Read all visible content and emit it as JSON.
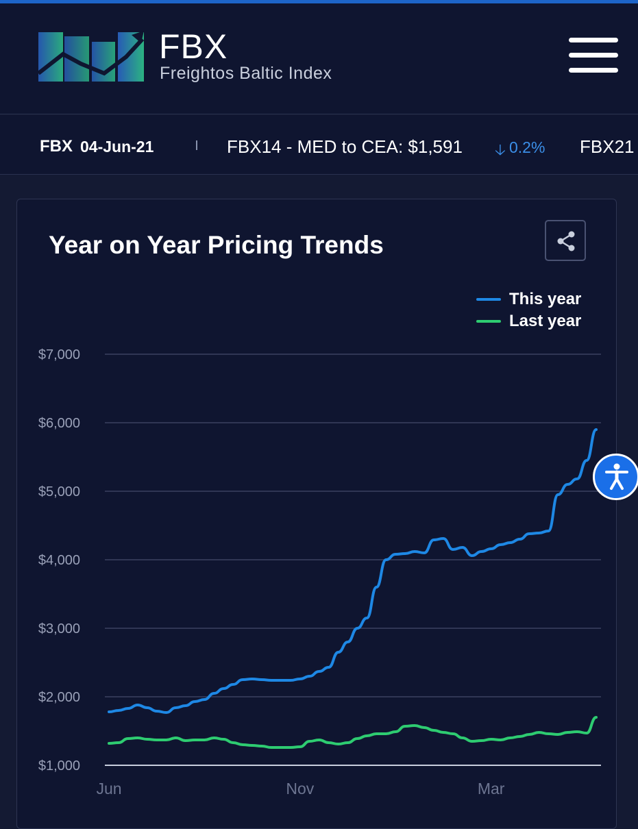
{
  "header": {
    "logo_title": "FBX",
    "logo_subtitle": "Freightos Baltic Index",
    "menu_icon": "hamburger-menu-icon"
  },
  "ticker": {
    "label": "FBX",
    "date": "04-Jun-21",
    "route_text": "FBX14 - MED to CEA: $1,591",
    "change_icon": "arrow-down-icon",
    "change": "0.2%",
    "next_text": "FBX21",
    "change_color": "#3b8fe8"
  },
  "card": {
    "title": "Year on Year Pricing Trends",
    "share_icon": "share-icon"
  },
  "colors": {
    "this_year": "#1e88e5",
    "last_year": "#2ecc71",
    "grid": "#3b4260",
    "axis_text": "#9aa1b8"
  },
  "chart_data": {
    "type": "line",
    "title": "Year on Year Pricing Trends",
    "xlabel": "",
    "ylabel": "",
    "x_tick_labels": [
      "Jun",
      "Nov",
      "Mar"
    ],
    "y_tick_labels": [
      "$1,000",
      "$2,000",
      "$3,000",
      "$4,000",
      "$5,000",
      "$6,000",
      "$7,000"
    ],
    "y_ticks": [
      1000,
      2000,
      3000,
      4000,
      5000,
      6000,
      7000
    ],
    "ylim": [
      1000,
      7000
    ],
    "legend_position": "top-right",
    "grid": true,
    "series": [
      {
        "name": "This year",
        "color": "#1e88e5",
        "values": [
          1780,
          1800,
          1830,
          1880,
          1840,
          1790,
          1770,
          1840,
          1870,
          1930,
          1960,
          2050,
          2120,
          2180,
          2250,
          2260,
          2250,
          2240,
          2240,
          2240,
          2260,
          2300,
          2370,
          2430,
          2650,
          2800,
          3000,
          3150,
          3600,
          4000,
          4080,
          4090,
          4120,
          4100,
          4290,
          4310,
          4150,
          4180,
          4060,
          4120,
          4160,
          4220,
          4250,
          4300,
          4380,
          4390,
          4420,
          4950,
          5100,
          5180,
          5450,
          5900
        ]
      },
      {
        "name": "Last year",
        "color": "#2ecc71",
        "values": [
          1320,
          1330,
          1390,
          1400,
          1380,
          1370,
          1370,
          1400,
          1360,
          1370,
          1370,
          1400,
          1380,
          1330,
          1300,
          1290,
          1280,
          1260,
          1260,
          1260,
          1270,
          1350,
          1370,
          1330,
          1310,
          1330,
          1390,
          1430,
          1460,
          1460,
          1490,
          1570,
          1580,
          1550,
          1510,
          1480,
          1460,
          1400,
          1350,
          1360,
          1380,
          1370,
          1400,
          1420,
          1450,
          1480,
          1460,
          1450,
          1480,
          1490,
          1470,
          1700
        ]
      }
    ]
  }
}
